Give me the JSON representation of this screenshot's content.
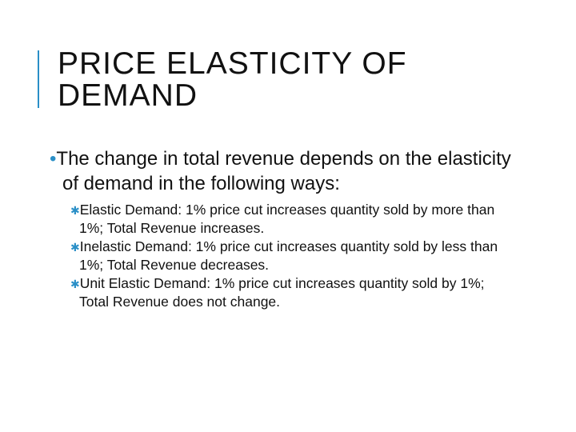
{
  "title": "PRICE ELASTICITY OF DEMAND",
  "bullet": "The change in total revenue depends on the elasticity of demand in the following ways:",
  "subbullets": [
    "Elastic Demand: 1% price cut increases quantity sold by more than 1%; Total Revenue increases.",
    "Inelastic Demand: 1% price cut increases quantity sold by less than 1%; Total Revenue decreases.",
    "Unit Elastic Demand: 1% price cut increases quantity sold by 1%; Total Revenue does not change."
  ]
}
